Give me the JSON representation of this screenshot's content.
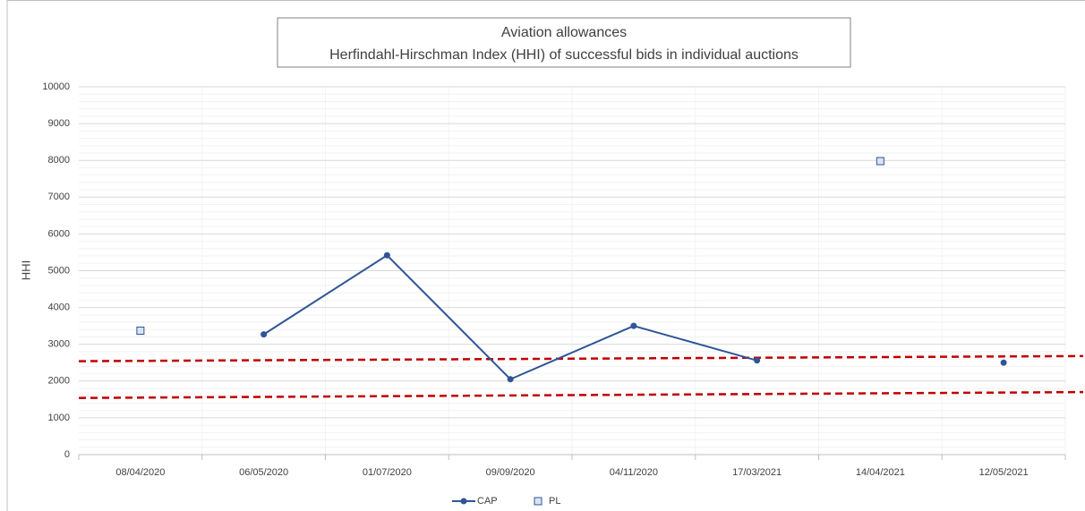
{
  "chart_data": {
    "type": "line",
    "title": "Aviation allowances",
    "subtitle": "Herfindahl-Hirschman Index (HHI) of successful bids in individual auctions",
    "y_label": "HHI",
    "categories": [
      "08/04/2020",
      "06/05/2020",
      "01/07/2020",
      "09/09/2020",
      "04/11/2020",
      "17/03/2021",
      "14/04/2021",
      "12/05/2021"
    ],
    "series": [
      {
        "name": "CAP",
        "color": "#2f5597",
        "marker": "circle",
        "values": [
          null,
          3270,
          5420,
          2050,
          3500,
          2560,
          null,
          2500
        ]
      },
      {
        "name": "PL",
        "color": "#2f5597",
        "fill": "#dae3f3",
        "marker": "square",
        "line": false,
        "values": [
          3370,
          null,
          null,
          null,
          null,
          null,
          7980,
          null
        ]
      }
    ],
    "reference_lines": [
      {
        "color": "#c00000",
        "from": 2540,
        "to": 2680
      },
      {
        "color": "#c00000",
        "from": 1540,
        "to": 1700
      }
    ],
    "ylim": [
      0,
      10000
    ],
    "yticks": [
      0,
      1000,
      2000,
      3000,
      4000,
      5000,
      6000,
      7000,
      8000,
      9000,
      10000
    ],
    "minor_yticks": [
      200,
      400,
      600,
      800,
      1200,
      1400,
      1600,
      1800,
      2200,
      2400,
      2600,
      2800,
      3200,
      3400,
      3600,
      3800,
      4200,
      4400,
      4600,
      4800,
      5200,
      5400,
      5600,
      5800,
      6200,
      6400,
      6600,
      6800,
      7200,
      7400,
      7600,
      7800,
      8200,
      8400,
      8600,
      8800,
      9200,
      9400,
      9600,
      9800
    ],
    "grid": true,
    "legend": "bottom"
  }
}
